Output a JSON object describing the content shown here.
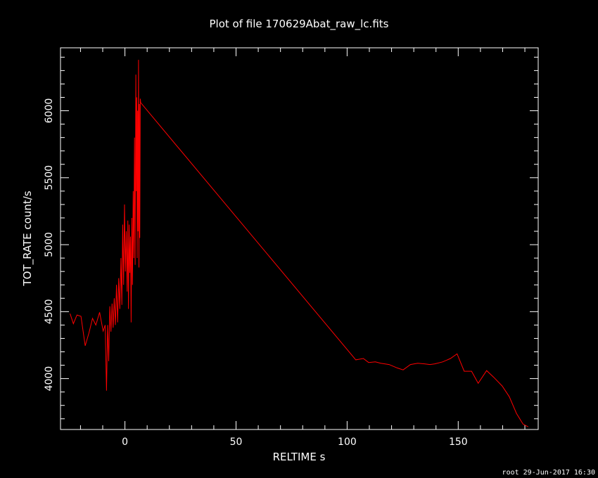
{
  "chart_data": {
    "type": "line",
    "title": "Plot of file 170629Abat_raw_lc.fits",
    "xlabel": "RELTIME  s",
    "ylabel": "TOT_RATE  count/s",
    "xlim": [
      -29,
      186
    ],
    "ylim": [
      3620,
      6470
    ],
    "xticks": [
      0,
      50,
      100,
      150
    ],
    "yticks": [
      4000,
      4500,
      5000,
      5500,
      6000
    ],
    "grid": false,
    "series": [
      {
        "color": "#ff0000",
        "x": [
          -24.7,
          -23.2,
          -21.6,
          -19.8,
          -17.9,
          -16.2,
          -14.6,
          -13.1,
          -11.4,
          -9.8,
          -8.9,
          -8.3,
          -7.8,
          -7.3,
          -6.8,
          -6.3,
          -5.8,
          -5.3,
          -4.8,
          -4.3,
          -3.8,
          -3.3,
          -2.8,
          -2.3,
          -1.8,
          -1.4,
          -1.0,
          -0.6,
          -0.2,
          0.2,
          0.6,
          1.0,
          1.3,
          1.6,
          1.9,
          2.2,
          2.5,
          2.8,
          3.1,
          3.4,
          3.7,
          4.0,
          4.3,
          4.6,
          4.9,
          5.1,
          5.3,
          5.5,
          5.7,
          5.9,
          6.1,
          6.3,
          6.5,
          6.7,
          6.9,
          7.1,
          103.9,
          107.3,
          109.7,
          112.7,
          115.1,
          118.9,
          122.5,
          125.2,
          128.5,
          131.8,
          134.8,
          137.3,
          139.5,
          143.0,
          146.5,
          149.5,
          152.7,
          156.0,
          159.0,
          162.8,
          166.0,
          169.8,
          173.0,
          176.2,
          179.2,
          181.5
        ],
        "y": [
          4485,
          4410,
          4475,
          4465,
          4245,
          4340,
          4450,
          4400,
          4495,
          4355,
          4400,
          3910,
          4400,
          4130,
          4540,
          4350,
          4560,
          4380,
          4600,
          4400,
          4700,
          4420,
          4750,
          4520,
          4900,
          4550,
          5150,
          4700,
          5300,
          4800,
          5100,
          4650,
          5180,
          4520,
          5150,
          4790,
          5060,
          4420,
          5200,
          4700,
          5400,
          4900,
          5800,
          4850,
          6270,
          5400,
          6100,
          4900,
          6000,
          5100,
          6380,
          4830,
          6050,
          5050,
          6090,
          6060,
          4140,
          4150,
          4120,
          4125,
          4115,
          4105,
          4080,
          4065,
          4105,
          4115,
          4110,
          4105,
          4110,
          4125,
          4150,
          4185,
          4055,
          4055,
          3965,
          4060,
          4010,
          3945,
          3865,
          3740,
          3660,
          3640
        ]
      }
    ]
  },
  "footer": "root 29-Jun-2017 16:30"
}
